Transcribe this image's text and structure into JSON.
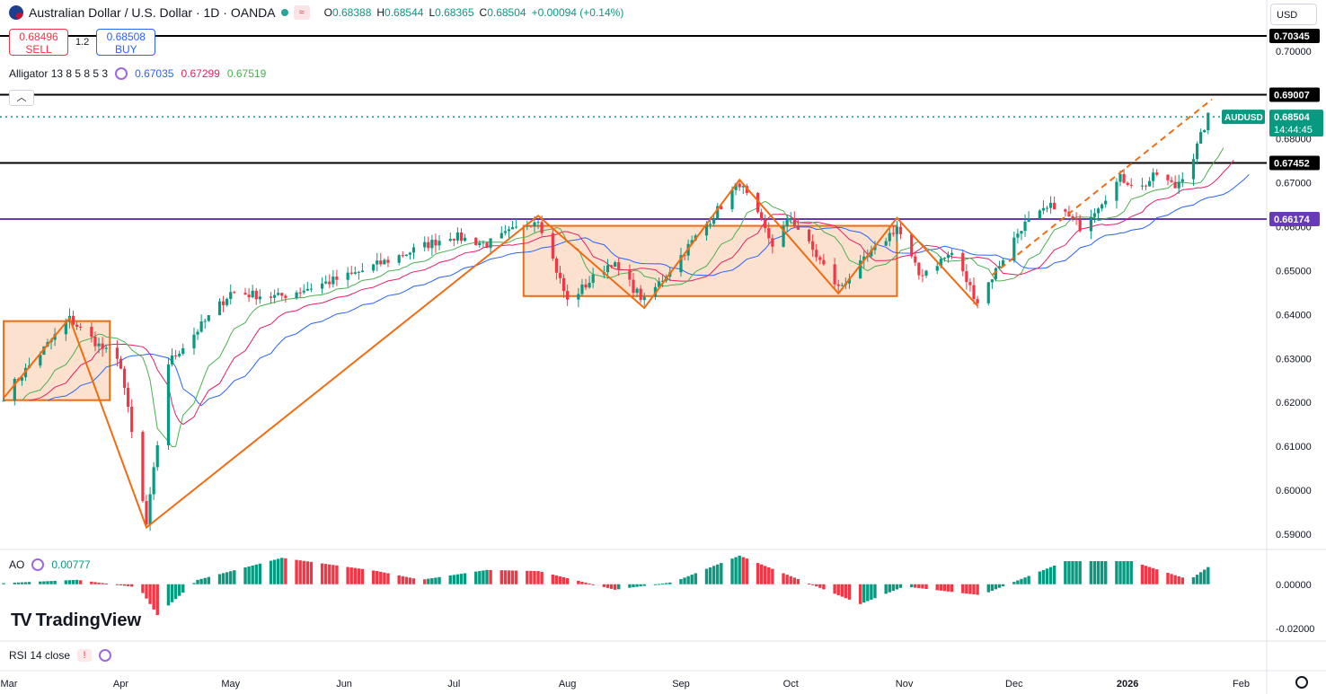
{
  "header": {
    "title": "Australian Dollar / U.S. Dollar · 1D · OANDA",
    "badge": "≈",
    "ohlc": [
      {
        "key": "O",
        "value": "0.68388"
      },
      {
        "key": "H",
        "value": "0.68544"
      },
      {
        "key": "L",
        "value": "0.68365"
      },
      {
        "key": "C",
        "value": "0.68504"
      }
    ],
    "change": "+0.00094 (+0.14%)"
  },
  "trade": {
    "sell_price": "0.68496",
    "sell_label": "SELL",
    "spread": "1.2",
    "buy_price": "0.68508",
    "buy_label": "BUY"
  },
  "alligator": {
    "label": "Alligator 13 8 5 8 5 3",
    "jaw": "0.67035",
    "teeth": "0.67299",
    "lips": "0.67519"
  },
  "ao": {
    "label": "AO",
    "value": "0.00777"
  },
  "rsi": {
    "label": "RSI 14 close",
    "warning": "!"
  },
  "currency": "USD",
  "logo": "TradingView",
  "symbol_tag": "AUDUSD",
  "countdown": "14:44:45",
  "colors": {
    "up": "#089981",
    "down": "#f23645",
    "jaw": "#2962ff",
    "teeth": "#e91e63",
    "lips": "#4caf50",
    "pattern": "#f26b10",
    "purple": "#673ab7"
  },
  "chart_data": {
    "type": "candlestick",
    "instrument": "AUDUSD",
    "timeframe": "1D",
    "ylim": [
      0.5865,
      0.7055
    ],
    "y_ticks": [
      "0.70000",
      "0.69000",
      "0.68000",
      "0.67000",
      "0.66000",
      "0.65000",
      "0.64000",
      "0.63000",
      "0.62000",
      "0.61000",
      "0.60000",
      "0.59000"
    ],
    "x_ticks": [
      "Mar",
      "Apr",
      "May",
      "Jun",
      "Jul",
      "Aug",
      "Sep",
      "Oct",
      "Nov",
      "Dec",
      "2026",
      "Feb"
    ],
    "horizontal_lines": [
      {
        "value": 0.70345,
        "label": "0.70345",
        "color": "#000000"
      },
      {
        "value": 0.69007,
        "label": "0.69007",
        "color": "#000000"
      },
      {
        "value": 0.67452,
        "label": "0.67452",
        "color": "#000000"
      },
      {
        "value": 0.66174,
        "label": "0.66174",
        "color": "#673ab7"
      }
    ],
    "last_price": {
      "value": 0.68504,
      "label": "0.68504"
    },
    "pattern_zigzag": [
      {
        "date": "2025-02-28",
        "price": 0.621
      },
      {
        "date": "2025-03-18",
        "price": 0.6392
      },
      {
        "date": "2025-04-08",
        "price": 0.5915
      },
      {
        "date": "2025-07-24",
        "price": 0.6625
      },
      {
        "date": "2025-08-22",
        "price": 0.6415
      },
      {
        "date": "2025-09-17",
        "price": 0.6707
      },
      {
        "date": "2025-10-14",
        "price": 0.6448
      },
      {
        "date": "2025-10-30",
        "price": 0.662
      },
      {
        "date": "2025-11-21",
        "price": 0.642
      }
    ],
    "boxes": [
      {
        "from": "2025-02-28",
        "to": "2025-03-29",
        "low": 0.6205,
        "high": 0.6385
      },
      {
        "from": "2025-07-20",
        "to": "2025-10-30",
        "low": 0.6442,
        "high": 0.6602
      }
    ],
    "trend_line": {
      "from": {
        "date": "2025-11-25",
        "price": 0.649
      },
      "to": {
        "date": "2026-01-24",
        "price": 0.689
      }
    },
    "price_path": [
      {
        "date": "2025-02-28",
        "price": 0.6215
      },
      {
        "date": "2025-03-18",
        "price": 0.639
      },
      {
        "date": "2025-04-01",
        "price": 0.6285
      },
      {
        "date": "2025-04-08",
        "price": 0.592
      },
      {
        "date": "2025-04-14",
        "price": 0.629
      },
      {
        "date": "2025-05-01",
        "price": 0.645
      },
      {
        "date": "2025-05-14",
        "price": 0.644
      },
      {
        "date": "2025-06-03",
        "price": 0.649
      },
      {
        "date": "2025-06-30",
        "price": 0.658
      },
      {
        "date": "2025-07-10",
        "price": 0.656
      },
      {
        "date": "2025-07-24",
        "price": 0.662
      },
      {
        "date": "2025-08-01",
        "price": 0.643
      },
      {
        "date": "2025-08-13",
        "price": 0.652
      },
      {
        "date": "2025-08-22",
        "price": 0.643
      },
      {
        "date": "2025-09-17",
        "price": 0.67
      },
      {
        "date": "2025-09-26",
        "price": 0.656
      },
      {
        "date": "2025-10-01",
        "price": 0.662
      },
      {
        "date": "2025-10-14",
        "price": 0.646
      },
      {
        "date": "2025-10-30",
        "price": 0.66
      },
      {
        "date": "2025-11-05",
        "price": 0.649
      },
      {
        "date": "2025-11-14",
        "price": 0.654
      },
      {
        "date": "2025-11-21",
        "price": 0.643
      },
      {
        "date": "2025-12-03",
        "price": 0.66
      },
      {
        "date": "2025-12-12",
        "price": 0.665
      },
      {
        "date": "2025-12-19",
        "price": 0.66
      },
      {
        "date": "2025-12-30",
        "price": 0.671
      },
      {
        "date": "2026-01-05",
        "price": 0.669
      },
      {
        "date": "2026-01-09",
        "price": 0.672
      },
      {
        "date": "2026-01-14",
        "price": 0.669
      },
      {
        "date": "2026-01-19",
        "price": 0.676
      },
      {
        "date": "2026-01-23",
        "price": 0.685
      }
    ],
    "ao_ylim": [
      -0.025,
      0.015
    ],
    "ao_ticks": [
      "0.00000",
      "-0.02000"
    ],
    "ao_path": [
      {
        "date": "2025-02-28",
        "value": 0.0005
      },
      {
        "date": "2025-03-20",
        "value": 0.002
      },
      {
        "date": "2025-04-06",
        "value": -0.0015
      },
      {
        "date": "2025-04-11",
        "value": -0.014
      },
      {
        "date": "2025-04-22",
        "value": 0.002
      },
      {
        "date": "2025-05-15",
        "value": 0.012
      },
      {
        "date": "2025-06-10",
        "value": 0.006
      },
      {
        "date": "2025-06-22",
        "value": 0.002
      },
      {
        "date": "2025-07-10",
        "value": 0.0065
      },
      {
        "date": "2025-07-24",
        "value": 0.006
      },
      {
        "date": "2025-08-14",
        "value": -0.0025
      },
      {
        "date": "2025-08-30",
        "value": 0.001
      },
      {
        "date": "2025-09-17",
        "value": 0.013
      },
      {
        "date": "2025-10-05",
        "value": 0.001
      },
      {
        "date": "2025-10-20",
        "value": -0.009
      },
      {
        "date": "2025-11-01",
        "value": -0.001
      },
      {
        "date": "2025-11-22",
        "value": -0.005
      },
      {
        "date": "2025-12-15",
        "value": 0.0105
      },
      {
        "date": "2026-01-02",
        "value": 0.0105
      },
      {
        "date": "2026-01-18",
        "value": 0.002
      },
      {
        "date": "2026-01-23",
        "value": 0.0078
      }
    ]
  }
}
